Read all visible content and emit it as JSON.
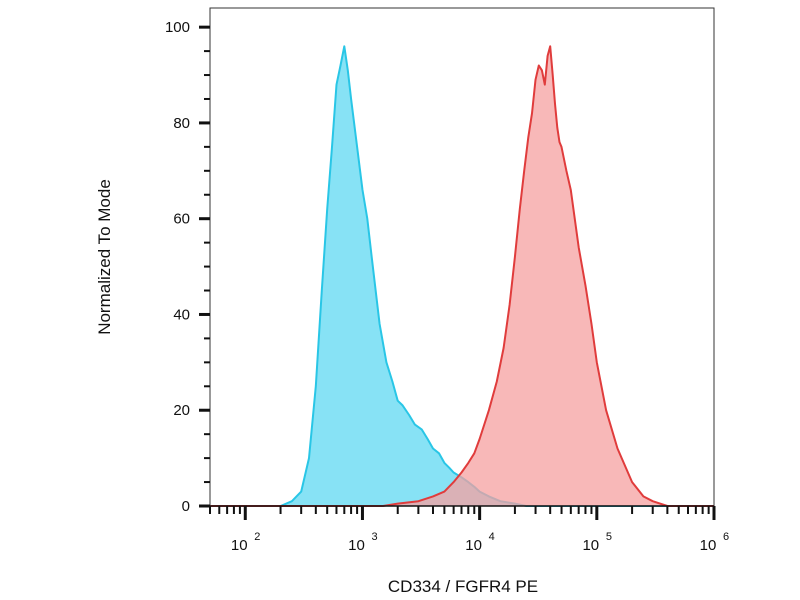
{
  "chart_data": {
    "type": "area",
    "xlabel": "CD334 / FGFR4 PE",
    "ylabel": "Normalized To Mode",
    "x_scale": "log",
    "xlim": [
      50,
      1000000
    ],
    "ylim": [
      0,
      104
    ],
    "y_ticks": [
      0,
      20,
      40,
      60,
      80,
      100
    ],
    "x_ticks": [
      {
        "value": 100,
        "base": "10",
        "exp": "2"
      },
      {
        "value": 1000,
        "base": "10",
        "exp": "3"
      },
      {
        "value": 10000,
        "base": "10",
        "exp": "4"
      },
      {
        "value": 100000,
        "base": "10",
        "exp": "5"
      },
      {
        "value": 1000000,
        "base": "10",
        "exp": "6"
      }
    ],
    "grid": false,
    "series": [
      {
        "color": "#29c6e6",
        "fill": "#5fd8f2",
        "x": [
          50,
          200,
          250,
          300,
          350,
          400,
          450,
          500,
          550,
          600,
          650,
          700,
          750,
          800,
          900,
          1000,
          1100,
          1200,
          1400,
          1600,
          1800,
          2000,
          2200,
          2500,
          2800,
          3200,
          3600,
          4000,
          4500,
          5000,
          5500,
          6000,
          7000,
          8000,
          9000,
          10000,
          12000,
          15000,
          20000,
          25000,
          30000,
          40000,
          1000000
        ],
        "y": [
          0,
          0,
          1,
          3,
          10,
          25,
          45,
          62,
          75,
          88,
          92,
          96,
          91,
          85,
          75,
          66,
          60,
          52,
          38,
          30,
          26,
          22,
          21,
          19,
          17,
          16,
          14,
          12,
          11,
          9,
          8,
          7,
          6,
          5,
          4,
          3,
          2,
          1,
          0.5,
          0,
          0,
          0,
          0
        ]
      },
      {
        "color": "#e03c3c",
        "fill": "#f6a0a0",
        "x": [
          50,
          400,
          1000,
          1500,
          2000,
          3000,
          4000,
          5000,
          6000,
          7000,
          8000,
          9000,
          10000,
          12000,
          14000,
          16000,
          18000,
          20000,
          22000,
          24000,
          26000,
          28000,
          30000,
          32000,
          34000,
          36000,
          38000,
          40000,
          42000,
          44000,
          46000,
          48000,
          50000,
          55000,
          60000,
          70000,
          80000,
          90000,
          100000,
          120000,
          150000,
          200000,
          250000,
          300000,
          400000,
          1000000
        ],
        "y": [
          0,
          0,
          0,
          0,
          0.5,
          1,
          2,
          3,
          5,
          7,
          9,
          11,
          14,
          20,
          26,
          33,
          42,
          52,
          62,
          70,
          77,
          82,
          89,
          92,
          91,
          88,
          94,
          96,
          90,
          84,
          79,
          76,
          75,
          70,
          66,
          54,
          46,
          38,
          30,
          20,
          12,
          5,
          2,
          1,
          0,
          0
        ]
      }
    ]
  }
}
